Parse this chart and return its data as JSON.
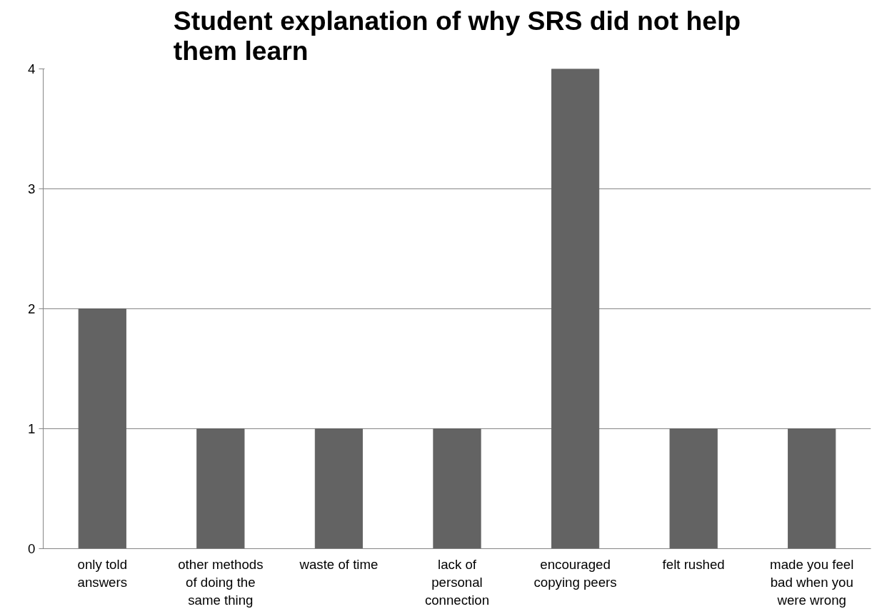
{
  "chart_data": {
    "type": "bar",
    "title": "Student explanation of why SRS did not help them learn",
    "categories": [
      "only told answers",
      "other methods of doing the same thing",
      "waste of time",
      "lack of personal connection",
      "encouraged copying peers",
      "felt rushed",
      "made you feel bad when you were wrong"
    ],
    "values": [
      2,
      1,
      1,
      1,
      4,
      1,
      1
    ],
    "color": "#636363",
    "ylim": [
      0,
      4
    ],
    "yticks": [
      0,
      1,
      2,
      3,
      4
    ],
    "grid": "y"
  }
}
